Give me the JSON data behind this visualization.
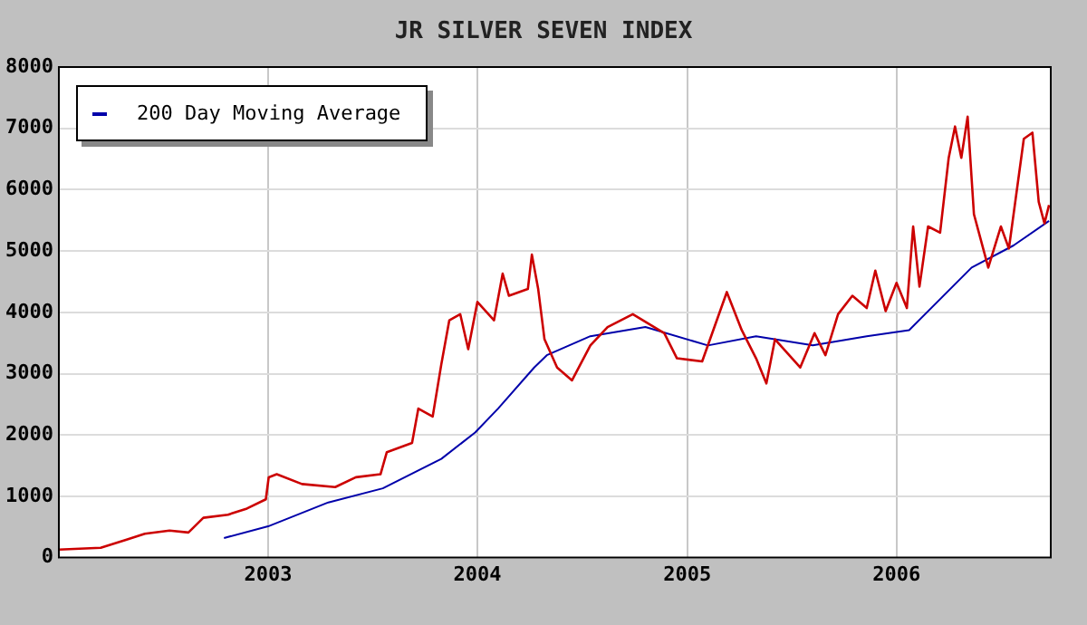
{
  "chart_data": {
    "type": "line",
    "title": "JR SILVER SEVEN INDEX",
    "xlim": [
      "2002-01-01",
      "2006-09-27"
    ],
    "xticks": [
      "2003",
      "2004",
      "2005",
      "2006"
    ],
    "ylim": [
      0,
      8000
    ],
    "yticks": [
      0,
      1000,
      2000,
      3000,
      4000,
      5000,
      6000,
      7000,
      8000
    ],
    "grid": true,
    "legend": "top left",
    "marker": "none",
    "line_style": "solid",
    "series": [
      {
        "color": "#cc0000",
        "x": [
          "2002-01-01",
          "2002-03-15",
          "2002-04-28",
          "2002-05-31",
          "2002-07-13",
          "2002-08-15",
          "2002-09-10",
          "2002-10-23",
          "2002-11-25",
          "2002-12-28",
          "2003-01-02",
          "2003-01-16",
          "2003-03-01",
          "2003-04-28",
          "2003-06-03",
          "2003-07-16",
          "2003-07-27",
          "2003-09-09",
          "2003-09-20",
          "2003-10-15",
          "2003-10-30",
          "2003-11-13",
          "2003-12-02",
          "2003-12-16",
          "2004-01-01",
          "2004-01-30",
          "2004-02-14",
          "2004-02-25",
          "2004-03-29",
          "2004-04-05",
          "2004-04-16",
          "2004-04-27",
          "2004-05-19",
          "2004-06-14",
          "2004-07-16",
          "2004-08-15",
          "2004-09-28",
          "2004-11-22",
          "2004-12-14",
          "2005-01-27",
          "2005-03-11",
          "2005-04-06",
          "2005-05-01",
          "2005-05-19",
          "2005-06-03",
          "2005-07-17",
          "2005-08-11",
          "2005-08-30",
          "2005-09-21",
          "2005-10-16",
          "2005-11-10",
          "2005-11-25",
          "2005-12-13",
          "2006-01-01",
          "2006-01-19",
          "2006-01-30",
          "2006-02-10",
          "2006-02-25",
          "2006-03-18",
          "2006-04-02",
          "2006-04-13",
          "2006-04-24",
          "2006-05-05",
          "2006-05-16",
          "2006-06-10",
          "2006-07-02",
          "2006-07-16",
          "2006-08-11",
          "2006-08-26",
          "2006-09-06",
          "2006-09-16",
          "2006-09-24"
        ],
        "values": [
          130,
          160,
          290,
          390,
          440,
          410,
          650,
          700,
          800,
          950,
          1310,
          1360,
          1200,
          1150,
          1310,
          1360,
          1720,
          1870,
          2430,
          2300,
          3150,
          3870,
          3970,
          3400,
          4170,
          3870,
          4630,
          4270,
          4380,
          4940,
          4380,
          3560,
          3100,
          2890,
          3460,
          3760,
          3970,
          3660,
          3250,
          3200,
          4330,
          3710,
          3250,
          2840,
          3560,
          3100,
          3660,
          3300,
          3970,
          4270,
          4070,
          4680,
          4020,
          4480,
          4070,
          5400,
          4420,
          5400,
          5300,
          6520,
          7030,
          6520,
          7190,
          5600,
          4730,
          5400,
          5040,
          6830,
          6930,
          5800,
          5450,
          5750
        ]
      },
      {
        "name": "200 Day Moving Average",
        "color": "#0000aa",
        "x": [
          "2002-10-16",
          "2003-01-01",
          "2003-04-16",
          "2003-07-20",
          "2003-10-30",
          "2003-12-28",
          "2004-02-06",
          "2004-04-09",
          "2004-05-01",
          "2004-07-16",
          "2004-10-20",
          "2005-02-06",
          "2005-05-01",
          "2005-08-08",
          "2005-11-10",
          "2006-01-23",
          "2006-05-12",
          "2006-07-24",
          "2006-09-24"
        ],
        "values": [
          320,
          510,
          900,
          1130,
          1610,
          2040,
          2430,
          3100,
          3300,
          3610,
          3760,
          3460,
          3610,
          3460,
          3610,
          3710,
          4730,
          5090,
          5490
        ]
      }
    ]
  }
}
